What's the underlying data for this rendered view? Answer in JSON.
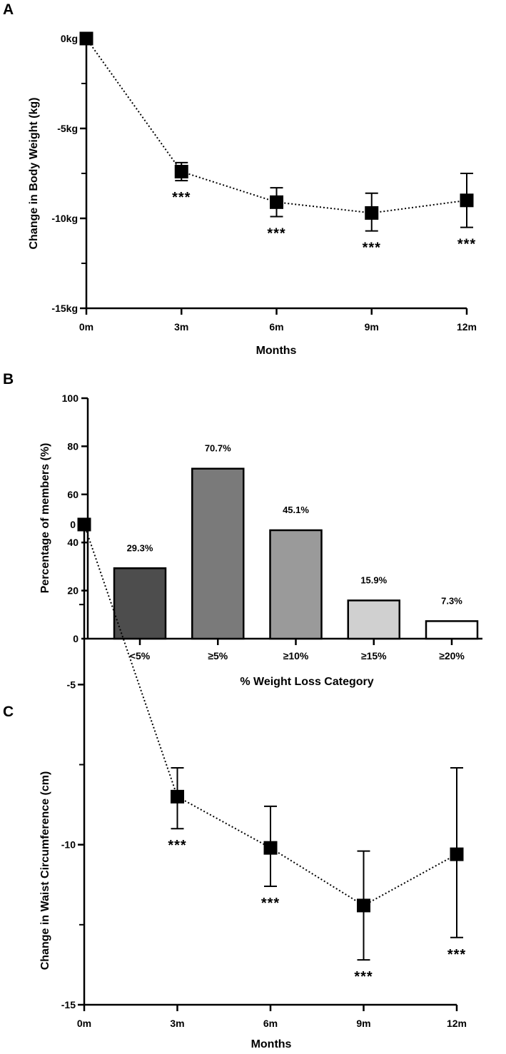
{
  "chart_data": [
    {
      "panel": "A",
      "type": "line",
      "xlabel": "Months",
      "ylabel": "Change in Body Weight (kg)",
      "categories": [
        "0m",
        "3m",
        "6m",
        "9m",
        "12m"
      ],
      "x": [
        0,
        3,
        6,
        9,
        12
      ],
      "values": [
        0,
        -7.4,
        -9.1,
        -9.7,
        -9.0
      ],
      "error_low": [
        0,
        -7.9,
        -9.9,
        -10.7,
        -10.5
      ],
      "error_high": [
        0,
        -6.9,
        -8.3,
        -8.6,
        -7.5
      ],
      "significance": [
        "",
        "***",
        "***",
        "***",
        "***"
      ],
      "ylim": [
        -15,
        0
      ],
      "yticks": [
        0,
        -5,
        -10,
        -15
      ],
      "ytick_labels": [
        "0kg",
        "-5kg",
        "-10kg",
        "-15kg"
      ],
      "grid": false
    },
    {
      "panel": "B",
      "type": "bar",
      "xlabel": "% Weight Loss Category",
      "ylabel": "Percentage of members (%)",
      "categories": [
        "<5%",
        "≥5%",
        "≥10%",
        "≥15%",
        "≥20%"
      ],
      "values": [
        29.3,
        70.7,
        45.1,
        15.9,
        7.3
      ],
      "value_labels": [
        "29.3%",
        "70.7%",
        "45.1%",
        "15.9%",
        "7.3%"
      ],
      "colors": [
        "#4d4d4d",
        "#7a7a7a",
        "#9a9a9a",
        "#d0d0d0",
        "#ffffff"
      ],
      "ylim": [
        0,
        100
      ],
      "yticks": [
        0,
        20,
        40,
        60,
        80,
        100
      ],
      "ytick_labels": [
        "0",
        "20",
        "40",
        "60",
        "80",
        "100"
      ],
      "grid": false
    },
    {
      "panel": "C",
      "type": "line",
      "xlabel": "Months",
      "ylabel": "Change in Waist Circumference (cm)",
      "categories": [
        "0m",
        "3m",
        "6m",
        "9m",
        "12m"
      ],
      "x": [
        0,
        3,
        6,
        9,
        12
      ],
      "values": [
        0,
        -8.5,
        -10.1,
        -11.9,
        -10.3
      ],
      "error_low": [
        0,
        -9.5,
        -11.3,
        -13.6,
        -12.9
      ],
      "error_high": [
        0,
        -7.6,
        -8.8,
        -10.2,
        -7.6
      ],
      "significance": [
        "",
        "***",
        "***",
        "***",
        "***"
      ],
      "ylim": [
        -15,
        0
      ],
      "yticks": [
        0,
        -5,
        -10,
        -15
      ],
      "ytick_labels": [
        "0",
        "-5",
        "-10",
        "-15"
      ],
      "grid": false
    }
  ]
}
